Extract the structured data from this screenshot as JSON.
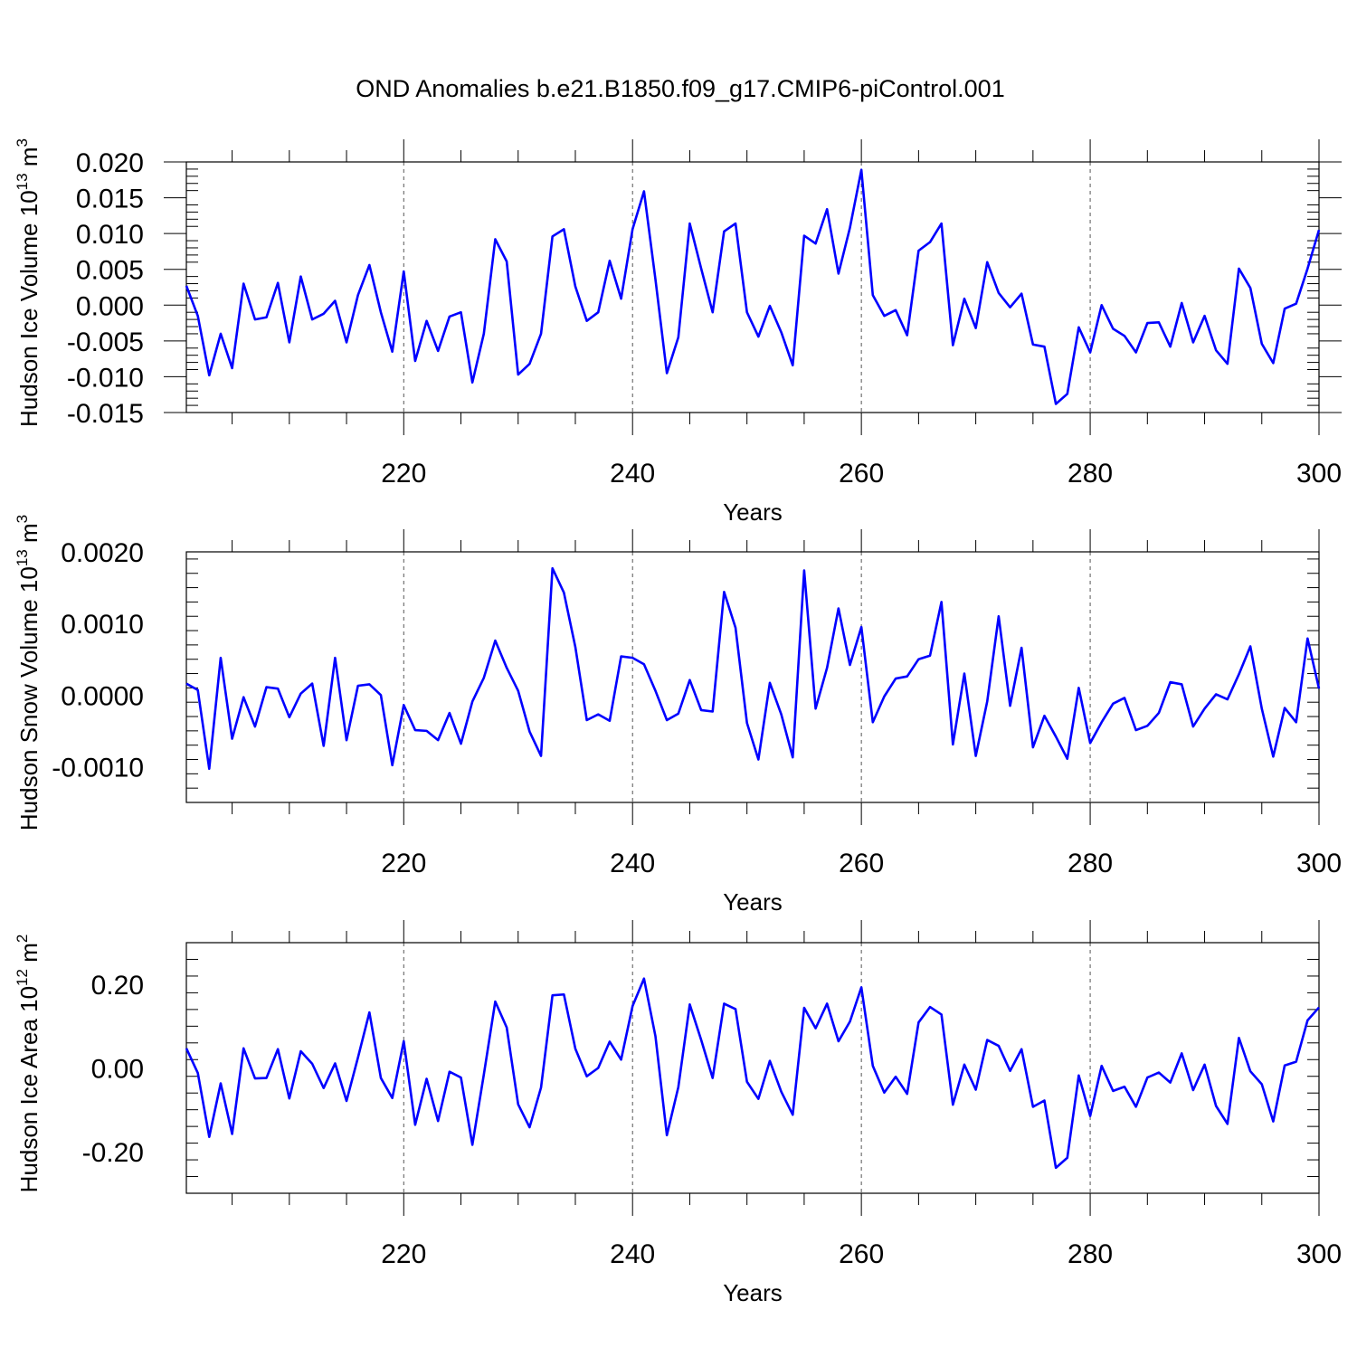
{
  "figure": {
    "title": "OND Anomalies b.e21.B1850.f09_g17.CMIP6-piControl.001",
    "line_color": "#0000ff"
  },
  "chart_data": [
    {
      "type": "line",
      "id": "ice_volume",
      "ylabel_text": "Hudson Ice Volume 10",
      "ylabel_exp": "13",
      "ylabel_unit": "m",
      "ylabel_unit_exp": "3",
      "xlabel": "Years",
      "xlim": [
        201,
        300
      ],
      "ylim": [
        -0.015,
        0.02
      ],
      "yticks": [
        -0.015,
        -0.01,
        -0.005,
        0.0,
        0.005,
        0.01,
        0.015,
        0.02
      ],
      "ytick_labels": [
        "-0.015",
        "-0.010",
        "-0.005",
        "0.000",
        "0.005",
        "0.010",
        "0.015",
        "0.020"
      ],
      "xticks": [
        220,
        240,
        260,
        280,
        300
      ],
      "xtick_labels": [
        "220",
        "240",
        "260",
        "280",
        "300"
      ],
      "x_start": 201,
      "series": [
        {
          "name": "Hudson Ice Volume",
          "values": [
            0.0027,
            -0.0015,
            -0.0098,
            -0.004,
            -0.0088,
            0.003,
            -0.002,
            -0.0017,
            0.0031,
            -0.0052,
            0.004,
            -0.002,
            -0.0012,
            0.0006,
            -0.0052,
            0.0014,
            0.0056,
            -0.001,
            -0.0065,
            0.0047,
            -0.0078,
            -0.0022,
            -0.0064,
            -0.0016,
            -0.001,
            -0.0108,
            -0.004,
            0.0092,
            0.0061,
            -0.0097,
            -0.0082,
            -0.004,
            0.0096,
            0.0106,
            0.0026,
            -0.0022,
            -0.001,
            0.0062,
            0.0009,
            0.0106,
            0.0159,
            0.0036,
            -0.0095,
            -0.0045,
            0.0114,
            0.0051,
            -0.001,
            0.0103,
            0.0114,
            -0.001,
            -0.0044,
            -0.0001,
            -0.0038,
            -0.0084,
            0.0097,
            0.0086,
            0.0134,
            0.0044,
            0.0108,
            0.0189,
            0.0014,
            -0.0015,
            -0.0007,
            -0.0042,
            0.0076,
            0.0088,
            0.0114,
            -0.0056,
            0.0009,
            -0.0032,
            0.006,
            0.0017,
            -0.0003,
            0.0016,
            -0.0055,
            -0.0058,
            -0.0138,
            -0.0124,
            -0.0031,
            -0.0066,
            0.0,
            -0.0033,
            -0.0043,
            -0.0066,
            -0.0025,
            -0.0024,
            -0.0058,
            0.0003,
            -0.0052,
            -0.0015,
            -0.0063,
            -0.0082,
            0.0051,
            0.0024,
            -0.0054,
            -0.0081,
            -0.0005,
            0.0002,
            0.0051,
            0.0105
          ]
        }
      ]
    },
    {
      "type": "line",
      "id": "snow_volume",
      "ylabel_text": "Hudson Snow Volume 10",
      "ylabel_exp": "13",
      "ylabel_unit": "m",
      "ylabel_unit_exp": "3",
      "xlabel": "Years",
      "xlim": [
        201,
        300
      ],
      "ylim": [
        -0.0015,
        0.002
      ],
      "yticks": [
        -0.001,
        0.0,
        0.001,
        0.002
      ],
      "ytick_labels": [
        "-0.0010",
        "0.0000",
        "0.0010",
        "0.0020"
      ],
      "xticks": [
        220,
        240,
        260,
        280,
        300
      ],
      "xtick_labels": [
        "220",
        "240",
        "260",
        "280",
        "300"
      ],
      "x_start": 201,
      "series": [
        {
          "name": "Hudson Snow Volume",
          "values": [
            0.00016,
            7e-05,
            -0.00103,
            0.00052,
            -0.00061,
            -3e-05,
            -0.00044,
            0.00011,
            9e-05,
            -0.00031,
            2e-05,
            0.00016,
            -0.00071,
            0.00052,
            -0.00063,
            0.00013,
            0.00015,
            0.0,
            -0.00098,
            -0.00014,
            -0.00049,
            -0.0005,
            -0.00063,
            -0.00025,
            -0.00068,
            -9e-05,
            0.00024,
            0.00076,
            0.00038,
            6e-05,
            -0.00051,
            -0.00085,
            0.00177,
            0.00143,
            0.00067,
            -0.00035,
            -0.00027,
            -0.00036,
            0.00054,
            0.00052,
            0.00043,
            6e-05,
            -0.00035,
            -0.00026,
            0.00021,
            -0.00021,
            -0.00023,
            0.00144,
            0.00094,
            -0.00039,
            -0.0009,
            0.00017,
            -0.00027,
            -0.00087,
            0.00174,
            -0.00019,
            0.00038,
            0.00121,
            0.00042,
            0.00095,
            -0.00038,
            -2e-05,
            0.00023,
            0.00026,
            0.0005,
            0.00055,
            0.0013,
            -0.00069,
            0.0003,
            -0.00085,
            -9e-05,
            0.0011,
            -0.00015,
            0.00066,
            -0.00073,
            -0.00029,
            -0.00058,
            -0.00089,
            0.0001,
            -0.00067,
            -0.00038,
            -0.00012,
            -4e-05,
            -0.00049,
            -0.00043,
            -0.00025,
            0.00018,
            0.00015,
            -0.00044,
            -0.00019,
            1e-05,
            -6e-05,
            0.00029,
            0.00068,
            -0.00019,
            -0.00086,
            -0.00018,
            -0.00038,
            0.00079,
            9e-05
          ]
        }
      ]
    },
    {
      "type": "line",
      "id": "ice_area",
      "ylabel_text": "Hudson Ice Area 10",
      "ylabel_exp": "12",
      "ylabel_unit": "m",
      "ylabel_unit_exp": "2",
      "xlabel": "Years",
      "xlim": [
        201,
        300
      ],
      "ylim": [
        -0.3,
        0.3
      ],
      "yticks": [
        -0.2,
        0.0,
        0.2
      ],
      "ytick_labels": [
        "-0.20",
        "0.00",
        "0.20"
      ],
      "xticks": [
        220,
        240,
        260,
        280,
        300
      ],
      "xtick_labels": [
        "220",
        "240",
        "260",
        "280",
        "300"
      ],
      "x_start": 201,
      "series": [
        {
          "name": "Hudson Ice Area",
          "values": [
            0.047,
            -0.012,
            -0.165,
            -0.037,
            -0.158,
            0.047,
            -0.025,
            -0.024,
            0.045,
            -0.073,
            0.04,
            0.01,
            -0.048,
            0.011,
            -0.079,
            0.025,
            0.133,
            -0.024,
            -0.072,
            0.064,
            -0.136,
            -0.026,
            -0.127,
            -0.009,
            -0.023,
            -0.184,
            -0.016,
            0.159,
            0.097,
            -0.087,
            -0.142,
            -0.047,
            0.174,
            0.176,
            0.046,
            -0.02,
            0.0,
            0.063,
            0.02,
            0.148,
            0.214,
            0.076,
            -0.161,
            -0.046,
            0.152,
            0.067,
            -0.024,
            0.154,
            0.141,
            -0.033,
            -0.074,
            0.017,
            -0.057,
            -0.112,
            0.144,
            0.095,
            0.154,
            0.064,
            0.111,
            0.193,
            0.005,
            -0.059,
            -0.021,
            -0.062,
            0.109,
            0.146,
            0.128,
            -0.088,
            0.008,
            -0.052,
            0.067,
            0.053,
            -0.007,
            0.045,
            -0.093,
            -0.078,
            -0.239,
            -0.215,
            -0.018,
            -0.115,
            0.005,
            -0.055,
            -0.045,
            -0.093,
            -0.023,
            -0.011,
            -0.035,
            0.035,
            -0.053,
            0.008,
            -0.091,
            -0.134,
            0.072,
            -0.008,
            -0.039,
            -0.128,
            0.006,
            0.015,
            0.114,
            0.145
          ]
        }
      ]
    }
  ]
}
